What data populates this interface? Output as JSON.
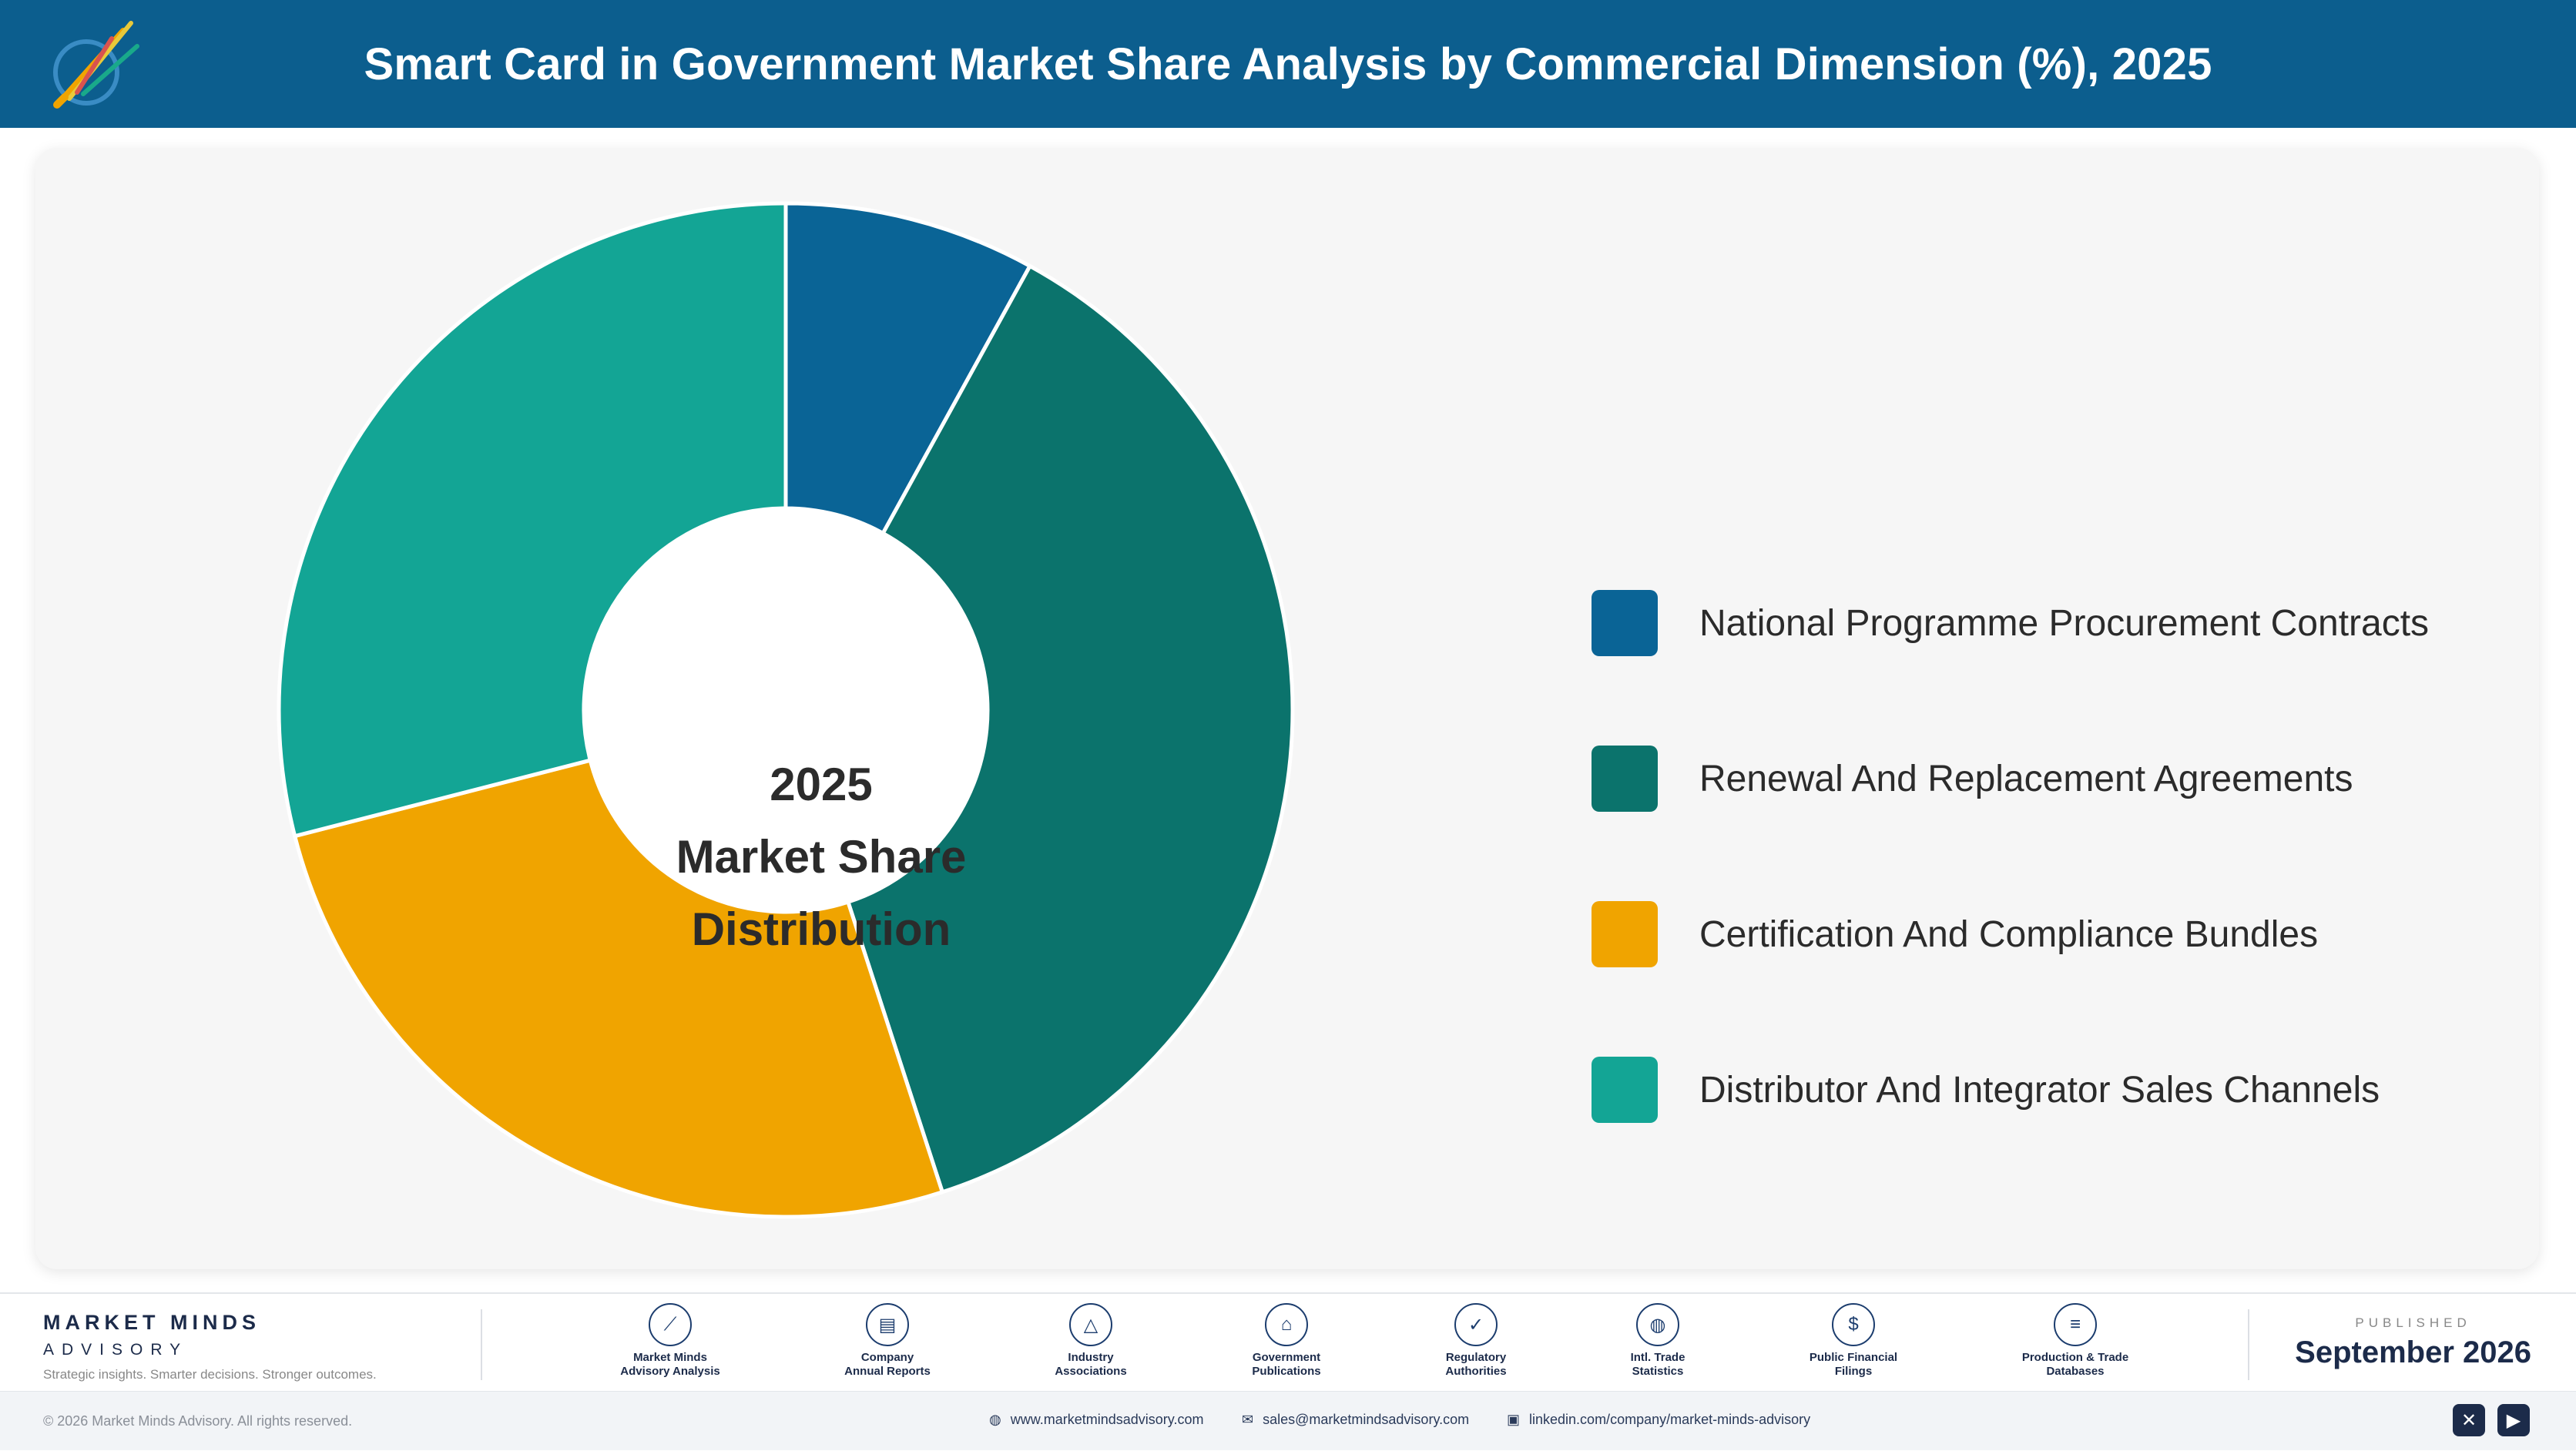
{
  "header": {
    "title": "Smart Card in Government Market Share Analysis by Commercial Dimension (%), 2025"
  },
  "center_text": {
    "line1": "2025",
    "line2": "Market Share",
    "line3": "Distribution"
  },
  "chart_data": {
    "type": "pie",
    "style": "donut",
    "title": "Smart Card in Government Market Share Analysis by Commercial Dimension (%), 2025",
    "categories": [
      "National Programme Procurement Contracts",
      "Renewal And Replacement Agreements",
      "Certification And Compliance Bundles",
      "Distributor And Integrator Sales Channels"
    ],
    "values": [
      8,
      37,
      26,
      29
    ],
    "colors": [
      "#0a6496",
      "#0b736c",
      "#f0a400",
      "#13a595"
    ],
    "legend_position": "right"
  },
  "footer": {
    "brand_name": "MARKET MINDS",
    "brand_sub": "ADVISORY",
    "tagline": "Strategic insights. Smarter decisions. Stronger outcomes.",
    "sources": [
      {
        "icon": "chart-line-icon",
        "glyph": "⟋",
        "line1": "Market Minds",
        "line2": "Advisory Analysis"
      },
      {
        "icon": "document-icon",
        "glyph": "▤",
        "line1": "Company",
        "line2": "Annual Reports"
      },
      {
        "icon": "network-icon",
        "glyph": "△",
        "line1": "Industry",
        "line2": "Associations"
      },
      {
        "icon": "government-building-icon",
        "glyph": "⌂",
        "line1": "Government",
        "line2": "Publications"
      },
      {
        "icon": "shield-check-icon",
        "glyph": "✓",
        "line1": "Regulatory",
        "line2": "Authorities"
      },
      {
        "icon": "globe-icon",
        "glyph": "◍",
        "line1": "Intl. Trade",
        "line2": "Statistics"
      },
      {
        "icon": "coin-icon",
        "glyph": "$",
        "line1": "Public Financial",
        "line2": "Filings"
      },
      {
        "icon": "database-icon",
        "glyph": "≡",
        "line1": "Production & Trade",
        "line2": "Databases"
      }
    ],
    "published_label": "PUBLISHED",
    "published_date": "September 2026",
    "copyright": "© 2026 Market Minds Advisory. All rights reserved.",
    "website": "www.marketmindsadvisory.com",
    "email": "sales@marketmindsadvisory.com",
    "linkedin": "linkedin.com/company/market-minds-advisory"
  }
}
